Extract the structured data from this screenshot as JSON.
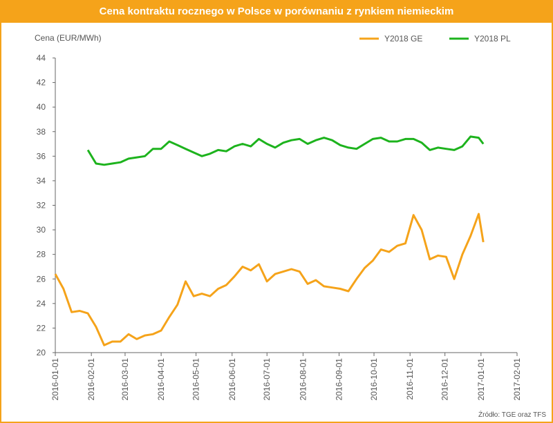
{
  "chart_data": {
    "type": "line",
    "title": "Cena kontraktu rocznego w Polsce w porównaniu z rynkiem niemieckim",
    "y_label": "Cena (EUR/MWh)",
    "source": "Źródło: TGE oraz TFS",
    "x": [
      "2016-01-01",
      "2016-01-08",
      "2016-01-15",
      "2016-01-22",
      "2016-01-29",
      "2016-02-05",
      "2016-02-12",
      "2016-02-19",
      "2016-02-26",
      "2016-03-04",
      "2016-03-11",
      "2016-03-18",
      "2016-03-25",
      "2016-04-01",
      "2016-04-08",
      "2016-04-15",
      "2016-04-22",
      "2016-04-29",
      "2016-05-06",
      "2016-05-13",
      "2016-05-20",
      "2016-05-27",
      "2016-06-03",
      "2016-06-10",
      "2016-06-17",
      "2016-06-24",
      "2016-07-01",
      "2016-07-08",
      "2016-07-15",
      "2016-07-22",
      "2016-07-29",
      "2016-08-05",
      "2016-08-12",
      "2016-08-19",
      "2016-08-26",
      "2016-09-02",
      "2016-09-09",
      "2016-09-16",
      "2016-09-23",
      "2016-09-30",
      "2016-10-07",
      "2016-10-14",
      "2016-10-21",
      "2016-10-28",
      "2016-11-04",
      "2016-11-11",
      "2016-11-18",
      "2016-11-25",
      "2016-12-02",
      "2016-12-09",
      "2016-12-16",
      "2016-12-23",
      "2016-12-30",
      "2017-01-03"
    ],
    "series": [
      {
        "name": "Y2018 GE",
        "color": "#f5a31a",
        "values": [
          26.4,
          25.2,
          23.3,
          23.4,
          23.2,
          22.1,
          20.6,
          20.9,
          20.9,
          21.5,
          21.1,
          21.4,
          21.5,
          21.8,
          22.9,
          23.9,
          25.8,
          24.6,
          24.8,
          24.6,
          25.2,
          25.5,
          26.2,
          27.0,
          26.7,
          27.2,
          25.8,
          26.4,
          26.6,
          26.8,
          26.6,
          25.6,
          25.9,
          25.4,
          25.3,
          25.2,
          25.0,
          26.0,
          26.9,
          27.5,
          28.4,
          28.2,
          28.7,
          28.9,
          31.2,
          30.0,
          27.6,
          27.9,
          27.8,
          26.0,
          28.0,
          29.5,
          31.3,
          29.0
        ]
      },
      {
        "name": "Y2018 PL",
        "color": "#1db31d",
        "values": [
          null,
          null,
          null,
          null,
          36.5,
          35.4,
          35.3,
          35.4,
          35.5,
          35.8,
          35.9,
          36.0,
          36.6,
          36.6,
          37.2,
          36.9,
          36.6,
          36.3,
          36.0,
          36.2,
          36.5,
          36.4,
          36.8,
          37.0,
          36.8,
          37.4,
          37.0,
          36.7,
          37.1,
          37.3,
          37.4,
          37.0,
          37.3,
          37.5,
          37.3,
          36.9,
          36.7,
          36.6,
          37.0,
          37.4,
          37.5,
          37.2,
          37.2,
          37.4,
          37.4,
          37.1,
          36.5,
          36.7,
          36.6,
          36.5,
          36.8,
          37.6,
          37.5,
          37.0
        ]
      }
    ],
    "xlim": [
      "2016-01-01",
      "2017-02-01"
    ],
    "xticks": [
      "2016-01-01",
      "2016-02-01",
      "2016-03-01",
      "2016-04-01",
      "2016-05-01",
      "2016-06-01",
      "2016-07-01",
      "2016-08-01",
      "2016-09-01",
      "2016-10-01",
      "2016-11-01",
      "2016-12-01",
      "2017-01-01",
      "2017-02-01"
    ],
    "ylim": [
      20,
      44
    ],
    "yticks": [
      20,
      22,
      24,
      26,
      28,
      30,
      32,
      34,
      36,
      38,
      40,
      42,
      44
    ],
    "grid": false,
    "legend": "top-right"
  }
}
